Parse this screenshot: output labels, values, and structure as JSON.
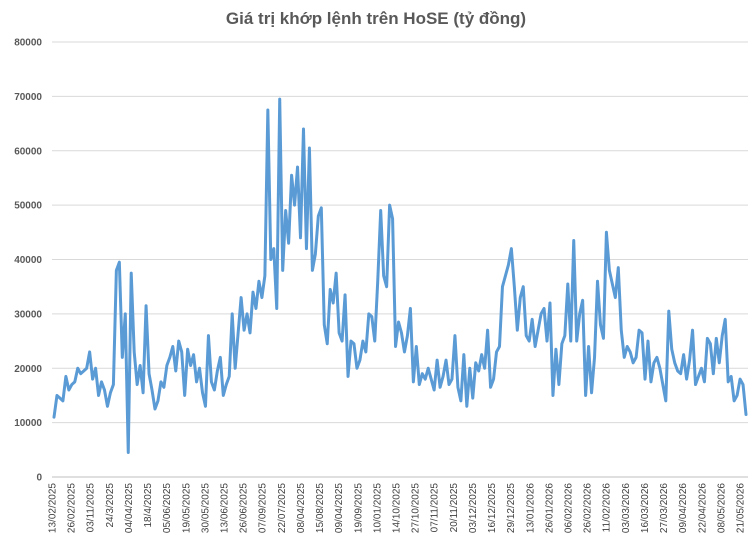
{
  "chart_data": {
    "type": "line",
    "title": "Giá trị khớp lệnh trên HoSE (tỷ đồng)",
    "xlabel": "",
    "ylabel": "",
    "ylim": [
      0,
      80000
    ],
    "y_ticks": [
      0,
      10000,
      20000,
      30000,
      40000,
      50000,
      60000,
      70000,
      80000
    ],
    "y_tick_labels": [
      "0",
      "10000",
      "20000",
      "30000",
      "40000",
      "50000",
      "60000",
      "70000",
      "80000"
    ],
    "x_tick_labels": [
      "13/02/2025",
      "26/02/2025",
      "03/11/2025",
      "24/3/2025",
      "04/04/2025",
      "18/4/2025",
      "05/06/2025",
      "19/05/2025",
      "30/05/2025",
      "13/06/2025",
      "26/06/2025",
      "07/09/2025",
      "22/07/2025",
      "08/04/2025",
      "15/08/2025",
      "09/04/2025",
      "19/09/2025",
      "10/01/2025",
      "14/10/2025",
      "27/10/2025",
      "07/11/2025",
      "20/11/2025",
      "03/12/2025",
      "16/12/2025",
      "29/12/2025",
      "13/01/2026",
      "26/01/2026",
      "06/02/2026",
      "26/02/2026",
      "11/02/2026",
      "03/03/2026",
      "16/03/2026",
      "27/03/2026",
      "09/04/2026",
      "22/04/2026",
      "08/05/2026",
      "21/05/2026"
    ],
    "grid": true,
    "legend": "none",
    "color": "#5b9bd5",
    "series": [
      {
        "values": [
          11000,
          15000,
          14500,
          14000,
          18500,
          16000,
          17000,
          17500,
          20000,
          19000,
          19500,
          20000,
          23000,
          18000,
          20000,
          15000,
          17500,
          16000,
          13000,
          15500,
          17000,
          38000,
          39500,
          22000,
          30000,
          4500,
          37500,
          23000,
          17000,
          20500,
          15500,
          31500,
          19000,
          16000,
          12500,
          14000,
          17500,
          16500,
          20500,
          22000,
          24000,
          19500,
          25000,
          23000,
          15000,
          23500,
          20500,
          22500,
          17500,
          20000,
          15500,
          13000,
          26000,
          17500,
          16000,
          19500,
          22000,
          15000,
          17000,
          18500,
          30000,
          20000,
          26500,
          33000,
          27000,
          30000,
          26500,
          34000,
          31000,
          36000,
          33000,
          37000,
          67500,
          40000,
          42000,
          31000,
          69500,
          38000,
          49000,
          43000,
          55500,
          50000,
          57000,
          44000,
          64000,
          42000,
          60500,
          38000,
          41000,
          48000,
          49500,
          28000,
          24500,
          34500,
          32000,
          37500,
          26500,
          25000,
          33500,
          18500,
          25000,
          24500,
          20000,
          21500,
          25000,
          23000,
          30000,
          29500,
          25000,
          36000,
          49000,
          37000,
          35000,
          50000,
          47500,
          24000,
          28500,
          26500,
          23000,
          26000,
          31000,
          17500,
          24000,
          17000,
          19000,
          18000,
          20000,
          18000,
          16000,
          21500,
          16500,
          18500,
          21500,
          17000,
          18000,
          26000,
          16500,
          14000,
          22500,
          13000,
          20000,
          14500,
          21000,
          19500,
          22500,
          20000,
          27000,
          16500,
          18000,
          23000,
          24000,
          35000,
          37000,
          39000,
          42000,
          35000,
          27000,
          33000,
          35000,
          26000,
          25000,
          29000,
          24000,
          27000,
          30000,
          31000,
          25000,
          32000,
          15000,
          23500,
          17000,
          24500,
          26000,
          35500,
          25000,
          43500,
          25000,
          30000,
          32500,
          15000,
          24000,
          15500,
          22000,
          36000,
          28000,
          25500,
          45000,
          38000,
          35500,
          33000,
          38500,
          27000,
          22000,
          24000,
          23000,
          21000,
          22000,
          27000,
          26500,
          18000,
          25000,
          17500,
          21000,
          22000,
          20000,
          17000,
          14000,
          30500,
          23500,
          21000,
          19500,
          19000,
          22500,
          18000,
          21500,
          27000,
          17000,
          18500,
          20000,
          17500,
          25500,
          24500,
          19000,
          25500,
          21000,
          26000,
          29000,
          17500,
          18500,
          14000,
          15000,
          18000,
          17000,
          11500
        ]
      }
    ]
  }
}
